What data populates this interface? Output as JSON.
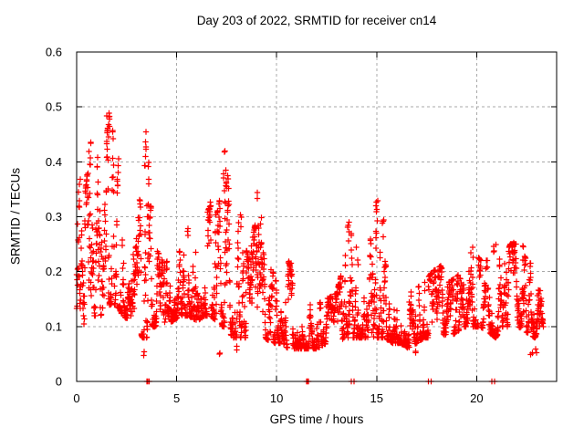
{
  "chart_data": {
    "type": "scatter",
    "title": "Day 203 of 2022, SRMTID for receiver cn14",
    "xlabel": "GPS time / hours",
    "ylabel": "SRMTID / TECUs",
    "xlim": [
      0,
      24
    ],
    "ylim": [
      0,
      0.6
    ],
    "xticks": [
      {
        "v": 0,
        "label": "0"
      },
      {
        "v": 5,
        "label": "5"
      },
      {
        "v": 10,
        "label": "10"
      },
      {
        "v": 15,
        "label": "15"
      },
      {
        "v": 20,
        "label": "20"
      }
    ],
    "yticks": [
      {
        "v": 0.0,
        "label": "0"
      },
      {
        "v": 0.1,
        "label": "0.1"
      },
      {
        "v": 0.2,
        "label": "0.2"
      },
      {
        "v": 0.3,
        "label": "0.3"
      },
      {
        "v": 0.4,
        "label": "0.4"
      },
      {
        "v": 0.5,
        "label": "0.5"
      },
      {
        "v": 0.6,
        "label": "0.6"
      }
    ],
    "grid": true,
    "legend": "none",
    "marker": {
      "shape": "plus",
      "color": "#ff0000",
      "size": 7
    },
    "colors": {
      "background": "#ffffff",
      "axis": "#000000",
      "grid": "#a9a9a9",
      "text": "#000000"
    },
    "sampling": {
      "t_start": 0.0,
      "t_end": 23.33,
      "n_points": 2600,
      "seed": 20220203,
      "walk_step": 0.5,
      "jump_prob": 0.03,
      "cluster_exponent": 1.5,
      "extra_t_jitter": 0.12
    },
    "envelope": [
      [
        0.0,
        0.07,
        0.33
      ],
      [
        0.3,
        0.09,
        0.3
      ],
      [
        0.6,
        0.11,
        0.4
      ],
      [
        0.9,
        0.12,
        0.38
      ],
      [
        1.2,
        0.12,
        0.3
      ],
      [
        1.55,
        0.14,
        0.46
      ],
      [
        1.75,
        0.14,
        0.48
      ],
      [
        2.0,
        0.14,
        0.38
      ],
      [
        2.3,
        0.12,
        0.26
      ],
      [
        2.7,
        0.11,
        0.24
      ],
      [
        3.0,
        0.1,
        0.26
      ],
      [
        3.3,
        0.08,
        0.4
      ],
      [
        3.5,
        0.08,
        0.44
      ],
      [
        3.7,
        0.1,
        0.32
      ],
      [
        4.0,
        0.1,
        0.24
      ],
      [
        4.4,
        0.1,
        0.21
      ],
      [
        4.8,
        0.11,
        0.24
      ],
      [
        5.2,
        0.12,
        0.27
      ],
      [
        5.6,
        0.12,
        0.29
      ],
      [
        6.0,
        0.11,
        0.26
      ],
      [
        6.4,
        0.12,
        0.3
      ],
      [
        6.7,
        0.12,
        0.32
      ],
      [
        7.0,
        0.11,
        0.3
      ],
      [
        7.3,
        0.1,
        0.36
      ],
      [
        7.5,
        0.1,
        0.4
      ],
      [
        7.8,
        0.08,
        0.26
      ],
      [
        8.2,
        0.08,
        0.3
      ],
      [
        8.6,
        0.08,
        0.22
      ],
      [
        9.0,
        0.08,
        0.3
      ],
      [
        9.4,
        0.08,
        0.22
      ],
      [
        9.8,
        0.07,
        0.2
      ],
      [
        10.2,
        0.07,
        0.16
      ],
      [
        10.6,
        0.06,
        0.22
      ],
      [
        11.0,
        0.06,
        0.16
      ],
      [
        11.5,
        0.06,
        0.14
      ],
      [
        12.0,
        0.06,
        0.14
      ],
      [
        12.5,
        0.07,
        0.15
      ],
      [
        13.0,
        0.07,
        0.16
      ],
      [
        13.4,
        0.08,
        0.22
      ],
      [
        13.65,
        0.08,
        0.28
      ],
      [
        14.0,
        0.08,
        0.24
      ],
      [
        14.4,
        0.08,
        0.2
      ],
      [
        14.8,
        0.08,
        0.28
      ],
      [
        15.05,
        0.08,
        0.32
      ],
      [
        15.4,
        0.08,
        0.28
      ],
      [
        15.8,
        0.07,
        0.2
      ],
      [
        16.2,
        0.07,
        0.18
      ],
      [
        16.6,
        0.06,
        0.16
      ],
      [
        17.0,
        0.07,
        0.17
      ],
      [
        17.4,
        0.08,
        0.18
      ],
      [
        17.8,
        0.08,
        0.2
      ],
      [
        18.2,
        0.09,
        0.21
      ],
      [
        18.6,
        0.08,
        0.18
      ],
      [
        19.0,
        0.09,
        0.19
      ],
      [
        19.4,
        0.1,
        0.21
      ],
      [
        19.8,
        0.1,
        0.24
      ],
      [
        20.2,
        0.1,
        0.22
      ],
      [
        20.6,
        0.09,
        0.22
      ],
      [
        20.95,
        0.08,
        0.26
      ],
      [
        21.3,
        0.1,
        0.22
      ],
      [
        21.7,
        0.1,
        0.25
      ],
      [
        22.1,
        0.1,
        0.25
      ],
      [
        22.5,
        0.09,
        0.22
      ],
      [
        22.9,
        0.08,
        0.21
      ],
      [
        23.15,
        0.09,
        0.2
      ],
      [
        23.33,
        0.1,
        0.18
      ]
    ],
    "extra_points": [
      [
        0.15,
        0.3,
        0.375,
        4
      ],
      [
        0.65,
        0.38,
        0.44,
        4
      ],
      [
        1.05,
        0.35,
        0.42,
        4
      ],
      [
        1.55,
        0.42,
        0.49,
        4
      ],
      [
        1.65,
        0.44,
        0.515,
        6
      ],
      [
        2.05,
        0.34,
        0.41,
        3
      ],
      [
        3.45,
        0.38,
        0.455,
        7
      ],
      [
        3.55,
        0.3,
        0.42,
        5
      ],
      [
        5.6,
        0.26,
        0.3,
        3
      ],
      [
        6.65,
        0.28,
        0.33,
        4
      ],
      [
        7.35,
        0.3,
        0.38,
        4
      ],
      [
        7.45,
        0.35,
        0.42,
        7
      ],
      [
        8.25,
        0.28,
        0.325,
        3
      ],
      [
        9.05,
        0.32,
        0.35,
        2
      ],
      [
        9.25,
        0.27,
        0.3,
        2
      ],
      [
        10.7,
        0.2,
        0.25,
        3
      ],
      [
        13.6,
        0.24,
        0.295,
        5
      ],
      [
        14.05,
        0.21,
        0.25,
        3
      ],
      [
        15.0,
        0.27,
        0.335,
        6
      ],
      [
        15.35,
        0.24,
        0.295,
        4
      ],
      [
        19.8,
        0.21,
        0.25,
        2
      ],
      [
        20.9,
        0.23,
        0.275,
        4
      ],
      [
        21.9,
        0.22,
        0.26,
        3
      ],
      [
        22.35,
        0.21,
        0.255,
        3
      ],
      [
        3.35,
        0.045,
        0.06,
        2
      ],
      [
        7.15,
        0.04,
        0.06,
        2
      ],
      [
        8.0,
        0.05,
        0.065,
        2
      ],
      [
        16.9,
        0.05,
        0.065,
        2
      ],
      [
        22.75,
        0.045,
        0.065,
        3
      ],
      [
        23.0,
        0.05,
        0.07,
        2
      ]
    ],
    "zero_points": [
      3.52,
      3.57,
      3.62,
      11.5,
      11.55,
      11.6,
      13.74,
      13.86,
      17.6,
      17.72,
      20.76,
      20.9
    ]
  }
}
